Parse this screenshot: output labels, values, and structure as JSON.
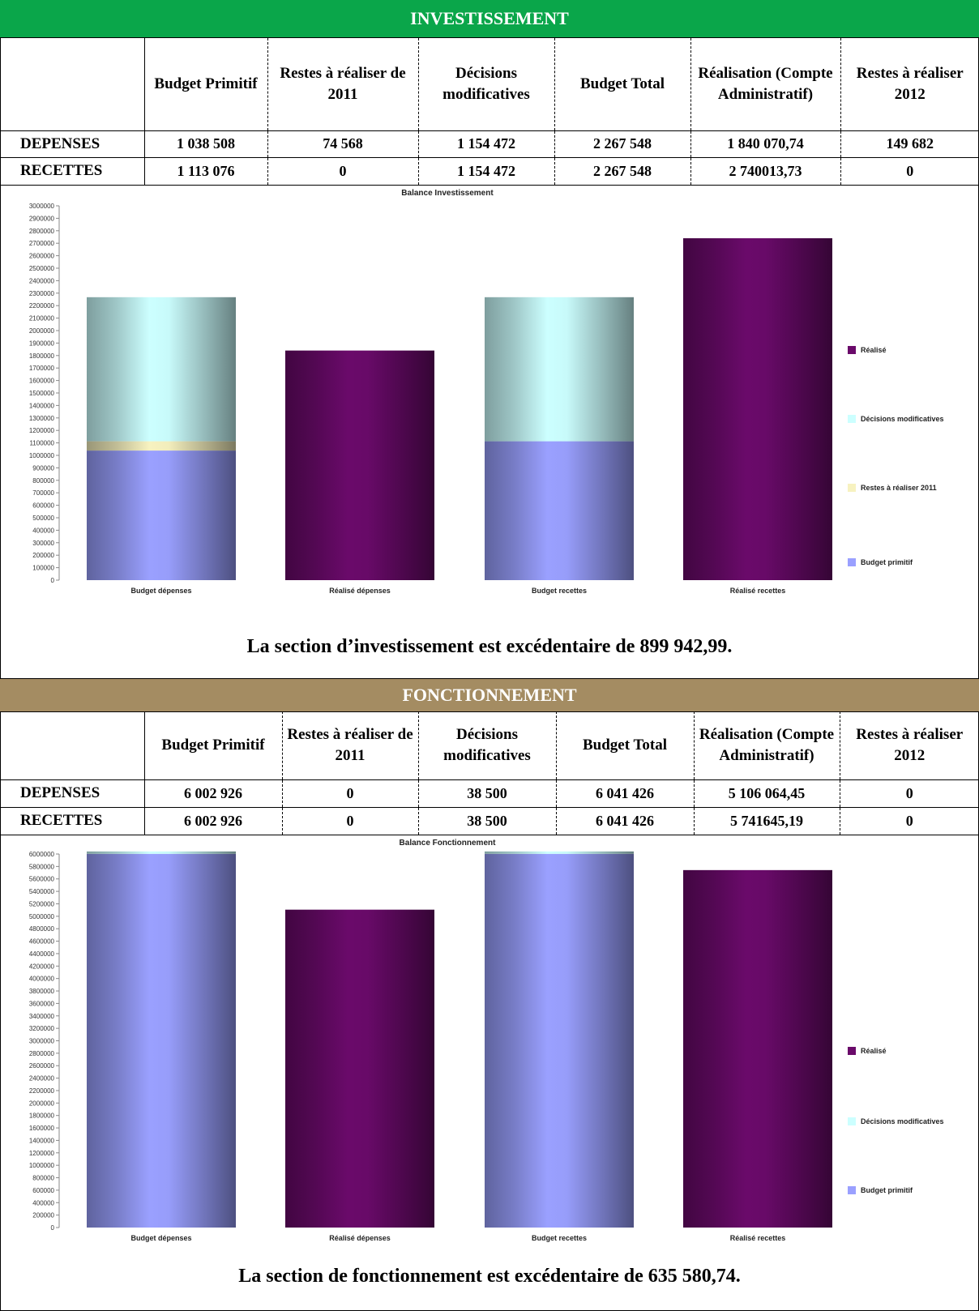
{
  "investissement": {
    "title": "INVESTISSEMENT",
    "table": {
      "headers": [
        "",
        "Budget Primitif",
        "Restes à réaliser de 2011",
        "Décisions modificatives",
        "Budget Total",
        "Réalisation (Compte Administratif)",
        "Restes à réaliser 2012"
      ],
      "rows": [
        [
          "DEPENSES",
          "1 038 508",
          "74 568",
          "1 154 472",
          "2 267 548",
          "1 840 070,74",
          "149 682"
        ],
        [
          "RECETTES",
          "1 113 076",
          "0",
          "1 154 472",
          "2 267 548",
          "2 740013,73",
          "0"
        ]
      ]
    },
    "conclusion": "La section d’investissement est excédentaire de 899 942,99."
  },
  "fonctionnement": {
    "title": "FONCTIONNEMENT",
    "table": {
      "headers": [
        "",
        "Budget Primitif",
        "Restes à réaliser de 2011",
        "Décisions modificatives",
        "Budget Total",
        "Réalisation (Compte Administratif)",
        "Restes à réaliser 2012"
      ],
      "rows": [
        [
          "DEPENSES",
          "6 002 926",
          "0",
          "38 500",
          "6 041 426",
          "5 106 064,45",
          "0"
        ],
        [
          "RECETTES",
          "6 002 926",
          "0",
          "38 500",
          "6 041 426",
          "5 741645,19",
          "0"
        ]
      ]
    },
    "conclusion": "La section de fonctionnement est excédentaire de 635 580,74."
  },
  "chart_data": [
    {
      "type": "bar",
      "stacked": true,
      "title": "Balance Investissement",
      "categories": [
        "Budget dépenses",
        "Réalisé dépenses",
        "Budget recettes",
        "Réalisé recettes"
      ],
      "series": [
        {
          "name": "Budget primitif",
          "color": "#9aa0ff",
          "values": [
            1038508,
            0,
            1113076,
            0
          ]
        },
        {
          "name": "Restes à réaliser 2011",
          "color": "#f7f2c0",
          "values": [
            74568,
            0,
            0,
            0
          ]
        },
        {
          "name": "Décisions modificatives",
          "color": "#ccffff",
          "values": [
            1154472,
            0,
            1154472,
            0
          ]
        },
        {
          "name": "Réalisé",
          "color": "#6a0a6a",
          "values": [
            0,
            1840070.74,
            0,
            2740013.73
          ]
        }
      ],
      "legend": [
        "Réalisé",
        "Décisions modificatives",
        "Restes à réaliser 2011",
        "Budget primitif"
      ],
      "legend_position": "right",
      "ylim": [
        0,
        3000000
      ],
      "ystep": 100000
    },
    {
      "type": "bar",
      "stacked": true,
      "title": "Balance Fonctionnement",
      "categories": [
        "Budget dépenses",
        "Réalisé dépenses",
        "Budget recettes",
        "Réalisé recettes"
      ],
      "series": [
        {
          "name": "Budget primitif",
          "color": "#9aa0ff",
          "values": [
            6002926,
            0,
            6002926,
            0
          ]
        },
        {
          "name": "Décisions modificatives",
          "color": "#ccffff",
          "values": [
            38500,
            0,
            38500,
            0
          ]
        },
        {
          "name": "Réalisé",
          "color": "#6a0a6a",
          "values": [
            0,
            5106064.45,
            0,
            5741645.19
          ]
        }
      ],
      "legend": [
        "Réalisé",
        "Décisions modificatives",
        "Budget primitif"
      ],
      "legend_position": "right",
      "ylim": [
        0,
        6000000
      ],
      "ystep": 200000
    }
  ]
}
